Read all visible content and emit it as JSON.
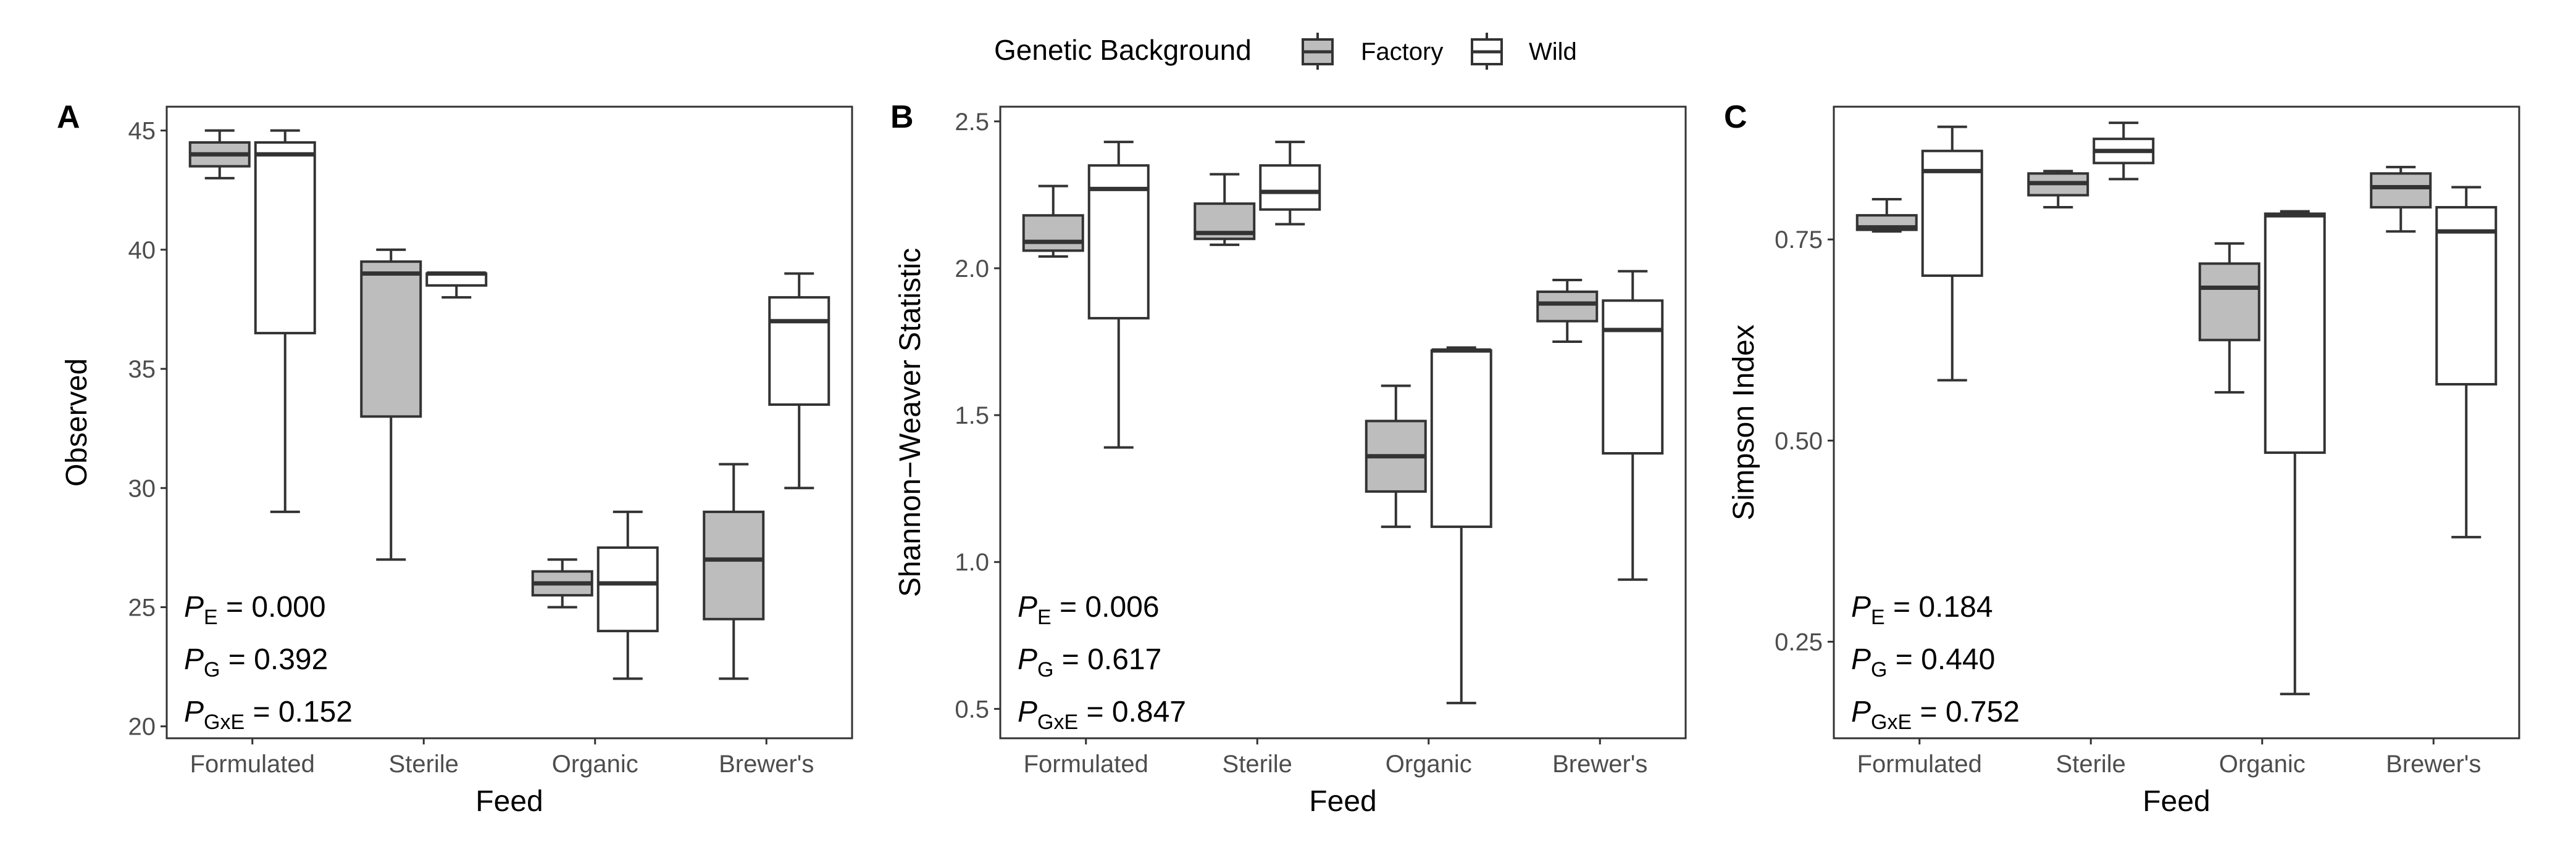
{
  "legend": {
    "title": "Genetic Background",
    "entries": [
      {
        "label": "Factory",
        "fill": "#bdbdbd"
      },
      {
        "label": "Wild",
        "fill": "#ffffff"
      }
    ]
  },
  "colors": {
    "factory": "#bdbdbd",
    "wild": "#ffffff",
    "stroke": "#333333",
    "axis_text": "#4d4d4d"
  },
  "chart_data": [
    {
      "type": "box",
      "panel_letter": "A",
      "xlabel": "Feed",
      "ylabel": "Observed",
      "ylim": [
        19.5,
        46
      ],
      "yticks": [
        20,
        25,
        30,
        35,
        40,
        45
      ],
      "ytick_labels": [
        "20",
        "25",
        "30",
        "35",
        "40",
        "45"
      ],
      "categories": [
        "Formulated",
        "Sterile",
        "Organic",
        "Brewer's"
      ],
      "series": [
        {
          "name": "Factory",
          "boxes": [
            {
              "min": 43,
              "q1": 43.5,
              "median": 44,
              "q3": 44.5,
              "max": 45
            },
            {
              "min": 27,
              "q1": 33,
              "median": 39,
              "q3": 39.5,
              "max": 40
            },
            {
              "min": 25,
              "q1": 25.5,
              "median": 26,
              "q3": 26.5,
              "max": 27
            },
            {
              "min": 22,
              "q1": 24.5,
              "median": 27,
              "q3": 29,
              "max": 31
            }
          ]
        },
        {
          "name": "Wild",
          "boxes": [
            {
              "min": 29,
              "q1": 36.5,
              "median": 44,
              "q3": 44.5,
              "max": 45
            },
            {
              "min": 38,
              "q1": 38.5,
              "median": 39,
              "q3": 39,
              "max": 39
            },
            {
              "min": 22,
              "q1": 24,
              "median": 26,
              "q3": 27.5,
              "max": 29
            },
            {
              "min": 30,
              "q1": 33.5,
              "median": 37,
              "q3": 38,
              "max": 39
            }
          ]
        }
      ],
      "stats": [
        {
          "sub": "E",
          "value": " = 0.000"
        },
        {
          "sub": "G",
          "value": " = 0.392"
        },
        {
          "sub": "GxE",
          "value": " = 0.152"
        }
      ]
    },
    {
      "type": "box",
      "panel_letter": "B",
      "xlabel": "Feed",
      "ylabel": "Shannon−Weaver Statistic",
      "ylim": [
        0.4,
        2.55
      ],
      "yticks": [
        0.5,
        1.0,
        1.5,
        2.0,
        2.5
      ],
      "ytick_labels": [
        "0.5",
        "1.0",
        "1.5",
        "2.0",
        "2.5"
      ],
      "categories": [
        "Formulated",
        "Sterile",
        "Organic",
        "Brewer's"
      ],
      "series": [
        {
          "name": "Factory",
          "boxes": [
            {
              "min": 2.04,
              "q1": 2.06,
              "median": 2.09,
              "q3": 2.18,
              "max": 2.28
            },
            {
              "min": 2.08,
              "q1": 2.1,
              "median": 2.12,
              "q3": 2.22,
              "max": 2.32
            },
            {
              "min": 1.12,
              "q1": 1.24,
              "median": 1.36,
              "q3": 1.48,
              "max": 1.6
            },
            {
              "min": 1.75,
              "q1": 1.82,
              "median": 1.88,
              "q3": 1.92,
              "max": 1.96
            }
          ]
        },
        {
          "name": "Wild",
          "boxes": [
            {
              "min": 1.39,
              "q1": 1.83,
              "median": 2.27,
              "q3": 2.35,
              "max": 2.43
            },
            {
              "min": 2.15,
              "q1": 2.2,
              "median": 2.26,
              "q3": 2.35,
              "max": 2.43
            },
            {
              "min": 0.52,
              "q1": 1.12,
              "median": 1.72,
              "q3": 1.72,
              "max": 1.73
            },
            {
              "min": 0.94,
              "q1": 1.37,
              "median": 1.79,
              "q3": 1.89,
              "max": 1.99
            }
          ]
        }
      ],
      "stats": [
        {
          "sub": "E",
          "value": " = 0.006"
        },
        {
          "sub": "G",
          "value": " = 0.617"
        },
        {
          "sub": "GxE",
          "value": " = 0.847"
        }
      ]
    },
    {
      "type": "box",
      "panel_letter": "C",
      "xlabel": "Feed",
      "ylabel": "Simpson Index",
      "ylim": [
        0.13,
        0.915
      ],
      "yticks": [
        0.25,
        0.5,
        0.75
      ],
      "ytick_labels": [
        "0.25",
        "0.50",
        "0.75"
      ],
      "categories": [
        "Formulated",
        "Sterile",
        "Organic",
        "Brewer's"
      ],
      "series": [
        {
          "name": "Factory",
          "boxes": [
            {
              "min": 0.76,
              "q1": 0.762,
              "median": 0.765,
              "q3": 0.78,
              "max": 0.8
            },
            {
              "min": 0.79,
              "q1": 0.805,
              "median": 0.82,
              "q3": 0.832,
              "max": 0.835
            },
            {
              "min": 0.56,
              "q1": 0.625,
              "median": 0.69,
              "q3": 0.72,
              "max": 0.745
            },
            {
              "min": 0.76,
              "q1": 0.79,
              "median": 0.815,
              "q3": 0.832,
              "max": 0.84
            }
          ]
        },
        {
          "name": "Wild",
          "boxes": [
            {
              "min": 0.575,
              "q1": 0.705,
              "median": 0.835,
              "q3": 0.86,
              "max": 0.89
            },
            {
              "min": 0.825,
              "q1": 0.845,
              "median": 0.86,
              "q3": 0.875,
              "max": 0.895
            },
            {
              "min": 0.185,
              "q1": 0.485,
              "median": 0.78,
              "q3": 0.782,
              "max": 0.785
            },
            {
              "min": 0.38,
              "q1": 0.57,
              "median": 0.76,
              "q3": 0.79,
              "max": 0.815
            }
          ]
        }
      ],
      "stats": [
        {
          "sub": "E",
          "value": " = 0.184"
        },
        {
          "sub": "G",
          "value": " = 0.440"
        },
        {
          "sub": "GxE",
          "value": " = 0.752"
        }
      ]
    }
  ]
}
